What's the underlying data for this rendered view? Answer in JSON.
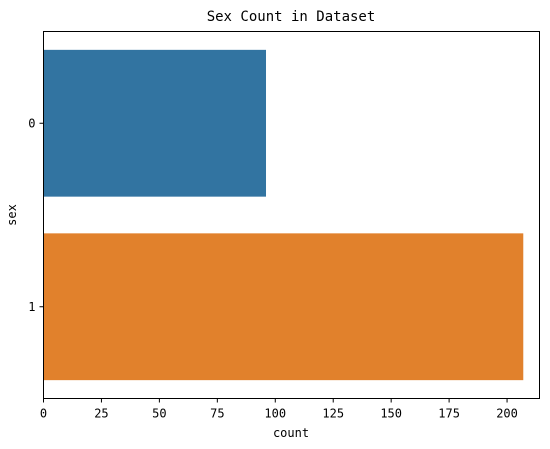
{
  "chart_data": {
    "type": "bar",
    "orientation": "horizontal",
    "title": "Sex Count in Dataset",
    "xlabel": "count",
    "ylabel": "sex",
    "categories": [
      "0",
      "1"
    ],
    "values": [
      96,
      207
    ],
    "colors": [
      "#3274a1",
      "#e1812c"
    ],
    "xlim": [
      0,
      214
    ],
    "xticks": [
      0,
      25,
      50,
      75,
      100,
      125,
      150,
      175,
      200
    ],
    "grid": false,
    "legend": "none"
  }
}
